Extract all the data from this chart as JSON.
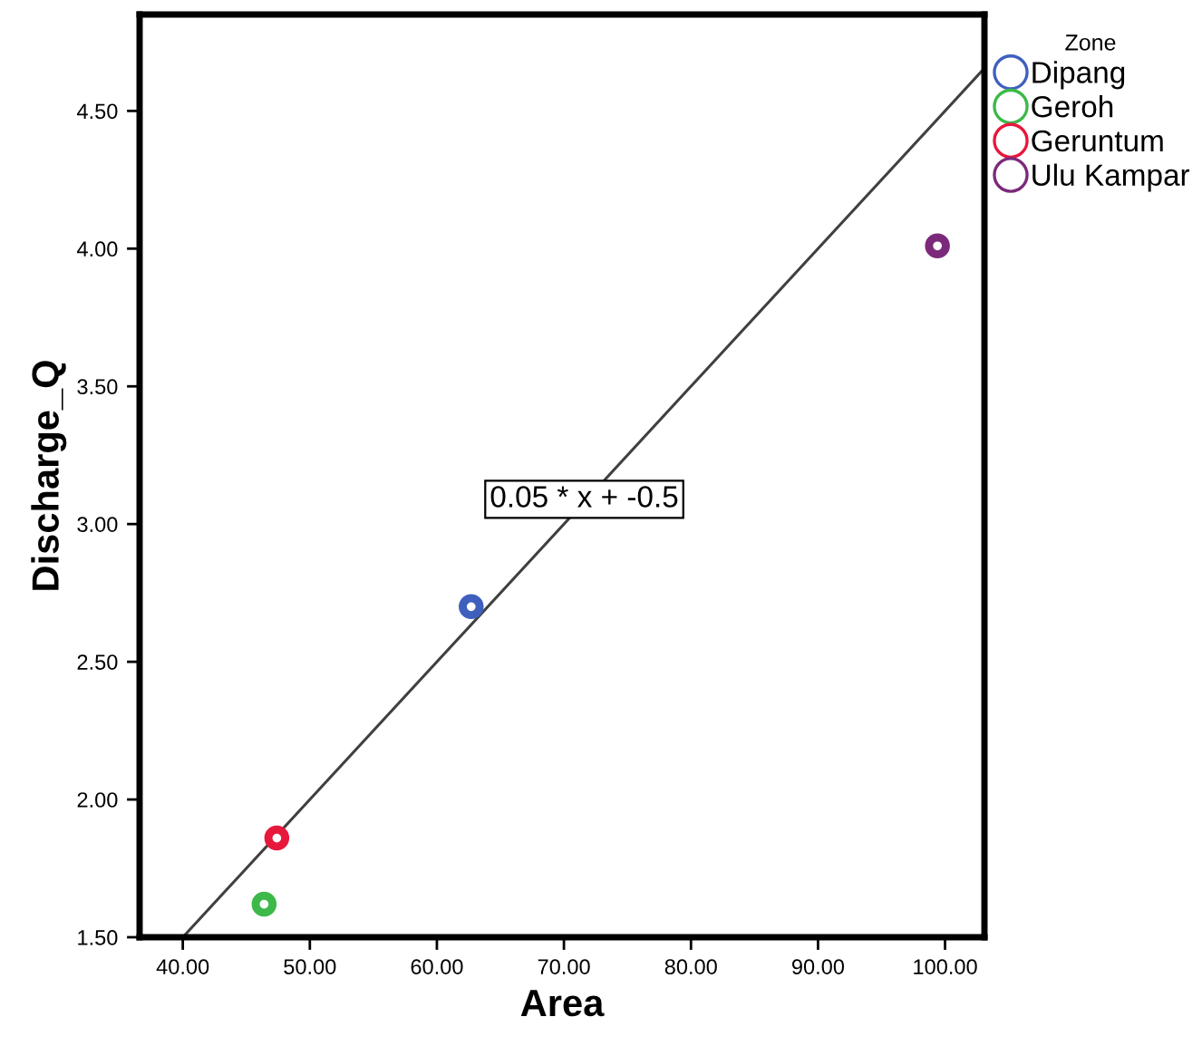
{
  "chart_data": {
    "type": "scatter",
    "xlabel": "Area",
    "ylabel": "Discharge_Q",
    "legend_title": "Zone",
    "legend": "right",
    "grid": false,
    "marker": "circle",
    "xlim": [
      36.6,
      103.1
    ],
    "ylim": [
      1.5,
      4.85
    ],
    "xticks": [
      {
        "value": 40,
        "label": "40.00"
      },
      {
        "value": 50,
        "label": "50.00"
      },
      {
        "value": 60,
        "label": "60.00"
      },
      {
        "value": 70,
        "label": "70.00"
      },
      {
        "value": 80,
        "label": "80.00"
      },
      {
        "value": 90,
        "label": "90.00"
      },
      {
        "value": 100,
        "label": "100.00"
      }
    ],
    "yticks": [
      {
        "value": 1.5,
        "label": "1.50"
      },
      {
        "value": 2.0,
        "label": "2.00"
      },
      {
        "value": 2.5,
        "label": "2.50"
      },
      {
        "value": 3.0,
        "label": "3.00"
      },
      {
        "value": 3.5,
        "label": "3.50"
      },
      {
        "value": 4.0,
        "label": "4.00"
      },
      {
        "value": 4.5,
        "label": "4.50"
      }
    ],
    "series": [
      {
        "name": "Dipang",
        "color": "#3f5fbf",
        "x": [
          62.7
        ],
        "values": [
          2.7
        ]
      },
      {
        "name": "Geroh",
        "color": "#3cb94a",
        "x": [
          46.4
        ],
        "values": [
          1.62
        ]
      },
      {
        "name": "Geruntum",
        "color": "#e8173c",
        "x": [
          47.4
        ],
        "values": [
          1.86
        ]
      },
      {
        "name": "Ulu Kampar",
        "color": "#7b2a7b",
        "x": [
          99.4
        ],
        "values": [
          4.01
        ]
      },
      {
        "type": "line",
        "marker": "none",
        "color": "#404040",
        "x": [
          40,
          103.1
        ],
        "values": [
          1.5,
          4.655
        ]
      }
    ],
    "annotations": [
      {
        "text": "0.05 * x + -0.5",
        "x": 71.6,
        "y": 3.09
      }
    ]
  }
}
